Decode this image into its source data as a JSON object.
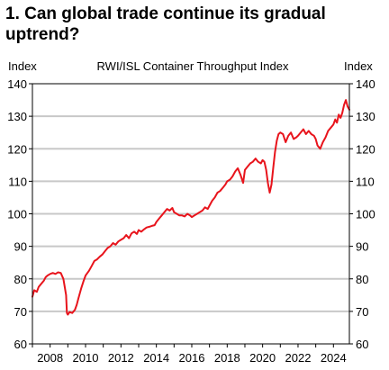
{
  "title": "1. Can global trade continue its gradual uptrend?",
  "chart_data": {
    "type": "line",
    "subtitle": "RWI/ISL Container Throughput Index",
    "ylabel_left": "Index",
    "ylabel_right": "Index",
    "ylim": [
      60,
      140
    ],
    "yticks": [
      60,
      70,
      80,
      90,
      100,
      110,
      120,
      130,
      140
    ],
    "xlim": [
      2007.0,
      2024.9
    ],
    "xticks": [
      2008,
      2010,
      2012,
      2014,
      2016,
      2018,
      2020,
      2022,
      2024
    ],
    "grid": "horizontal",
    "legend": "none",
    "colors": {
      "line": "#e8141c",
      "grid": "#c8c8c8",
      "axis": "#000000"
    },
    "series": [
      {
        "name": "",
        "x": [
          2007.0,
          2007.1,
          2007.25,
          2007.35,
          2007.5,
          2007.65,
          2007.75,
          2007.85,
          2008.0,
          2008.15,
          2008.3,
          2008.45,
          2008.6,
          2008.75,
          2008.9,
          2008.95,
          2009.0,
          2009.1,
          2009.25,
          2009.4,
          2009.5,
          2009.6,
          2009.75,
          2009.9,
          2010.0,
          2010.2,
          2010.35,
          2010.5,
          2010.65,
          2010.8,
          2010.95,
          2011.1,
          2011.25,
          2011.4,
          2011.55,
          2011.7,
          2011.85,
          2012.0,
          2012.15,
          2012.3,
          2012.45,
          2012.6,
          2012.75,
          2012.9,
          2013.0,
          2013.15,
          2013.3,
          2013.45,
          2013.6,
          2013.75,
          2013.9,
          2014.0,
          2014.15,
          2014.3,
          2014.45,
          2014.6,
          2014.75,
          2014.9,
          2015.0,
          2015.15,
          2015.3,
          2015.45,
          2015.6,
          2015.75,
          2015.9,
          2016.0,
          2016.15,
          2016.3,
          2016.45,
          2016.6,
          2016.75,
          2016.9,
          2017.0,
          2017.15,
          2017.3,
          2017.45,
          2017.6,
          2017.75,
          2017.9,
          2018.0,
          2018.15,
          2018.3,
          2018.45,
          2018.6,
          2018.75,
          2018.9,
          2019.0,
          2019.15,
          2019.3,
          2019.45,
          2019.6,
          2019.75,
          2019.9,
          2020.0,
          2020.1,
          2020.2,
          2020.3,
          2020.4,
          2020.5,
          2020.6,
          2020.7,
          2020.8,
          2020.9,
          2021.0,
          2021.15,
          2021.3,
          2021.45,
          2021.6,
          2021.75,
          2021.9,
          2022.0,
          2022.15,
          2022.3,
          2022.45,
          2022.6,
          2022.75,
          2022.9,
          2023.0,
          2023.1,
          2023.25,
          2023.4,
          2023.55,
          2023.7,
          2023.85,
          2024.0,
          2024.1,
          2024.2,
          2024.3,
          2024.4,
          2024.5,
          2024.6,
          2024.7,
          2024.8,
          2024.9
        ],
        "values": [
          74.5,
          76.5,
          76.0,
          77.5,
          78.5,
          79.5,
          80.5,
          81.0,
          81.5,
          81.8,
          81.5,
          82.0,
          81.8,
          80.0,
          75.0,
          69.5,
          69.0,
          69.8,
          69.5,
          70.5,
          72.0,
          74.0,
          77.0,
          79.5,
          81.0,
          82.5,
          84.0,
          85.5,
          86.0,
          86.8,
          87.5,
          88.5,
          89.5,
          90.0,
          91.0,
          90.5,
          91.5,
          92.0,
          92.5,
          93.5,
          92.5,
          94.0,
          94.5,
          93.8,
          95.0,
          94.5,
          95.2,
          95.8,
          96.0,
          96.3,
          96.5,
          97.5,
          98.5,
          99.5,
          100.5,
          101.5,
          101.0,
          101.8,
          100.5,
          100.0,
          99.5,
          99.5,
          99.2,
          100.0,
          99.5,
          99.0,
          99.5,
          100.0,
          100.5,
          101.0,
          102.0,
          101.5,
          102.5,
          104.0,
          105.0,
          106.5,
          107.0,
          108.0,
          109.0,
          110.0,
          110.5,
          111.5,
          113.0,
          114.0,
          112.0,
          109.5,
          113.5,
          114.5,
          115.5,
          116.0,
          117.0,
          116.0,
          115.5,
          116.5,
          116.0,
          113.5,
          109.5,
          106.5,
          109.0,
          114.0,
          119.0,
          122.5,
          124.5,
          125.0,
          124.5,
          122.0,
          124.0,
          125.0,
          123.0,
          123.5,
          124.0,
          125.0,
          126.0,
          124.5,
          125.5,
          124.5,
          124.0,
          123.0,
          121.0,
          120.0,
          122.0,
          123.5,
          125.5,
          126.5,
          127.5,
          129.0,
          128.0,
          130.5,
          129.5,
          131.0,
          133.5,
          135.0,
          133.0,
          132.0
        ]
      }
    ]
  }
}
